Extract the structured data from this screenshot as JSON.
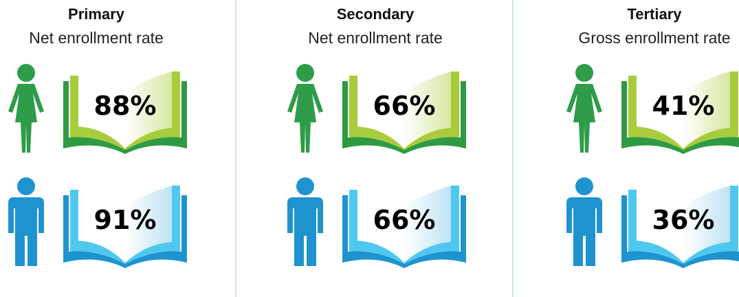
{
  "colors": {
    "female_figure": "#2e9c49",
    "female_book_dark": "#2f9a44",
    "female_book_light": "#a8cc3c",
    "male_figure": "#1f93cf",
    "male_book_dark": "#1f93cf",
    "male_book_light": "#4fc8ef",
    "divider": "#cde3ee"
  },
  "icons": {
    "female": "female-figure-icon",
    "male": "male-figure-icon",
    "book": "open-book-icon"
  },
  "chart_data": {
    "type": "table",
    "columns": [
      {
        "level": "Primary",
        "measure": "Net enrollment rate",
        "female": "88%",
        "male": "91%",
        "female_value": 88,
        "male_value": 91
      },
      {
        "level": "Secondary",
        "measure": "Net enrollment rate",
        "female": "66%",
        "male": "66%",
        "female_value": 66,
        "male_value": 66
      },
      {
        "level": "Tertiary",
        "measure": "Gross enrollment rate",
        "female": "41%",
        "male": "36%",
        "female_value": 41,
        "male_value": 36
      }
    ]
  }
}
